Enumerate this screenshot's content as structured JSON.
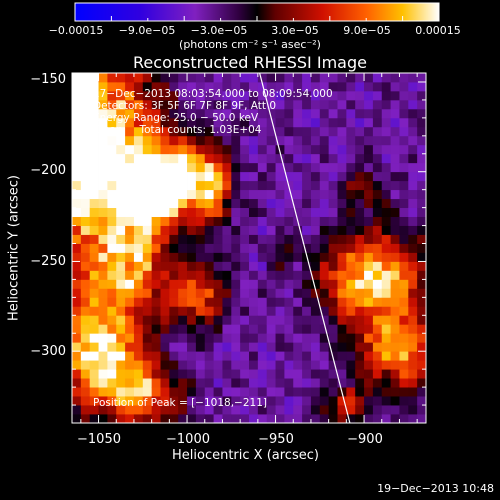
{
  "chart_data": {
    "type": "heatmap",
    "title": "Reconstructed RHESSI Image",
    "xlabel": "Heliocentric X (arcsec)",
    "ylabel": "Heliocentric Y (arcsec)",
    "xlim": [
      -1065,
      -865
    ],
    "ylim": [
      -340,
      -145
    ],
    "x_ticks": [
      -1050,
      -1000,
      -950,
      -900
    ],
    "x_tick_labels": [
      "−1050",
      "−1000",
      "−950",
      "−900"
    ],
    "y_ticks": [
      -150,
      -200,
      -250,
      -300
    ],
    "y_tick_labels": [
      "−150",
      "−200",
      "−250",
      "−300"
    ],
    "colorbar": {
      "range": [
        -0.00015,
        0.00015
      ],
      "tick_values": [
        -0.00015,
        -9e-05,
        -3e-05,
        3e-05,
        9e-05,
        0.00015
      ],
      "tick_labels": [
        "−0.00015",
        "−9.0e−05",
        "−3.0e−05",
        "3.0e−05",
        "9.0e−05",
        "0.00015"
      ],
      "unit": "(photons cm⁻² s⁻¹ asec⁻²)"
    },
    "annotations": {
      "time": "17−Dec−2013 08:03:54.000 to 08:09:54.000",
      "detectors": "Detectors: 3F 5F 6F 7F 8F 9F, Att 0",
      "energy": "Energy Range: 25.0 − 50.0 keV",
      "clean": "Clean     Total counts: 1.03E+04",
      "peak": "Position of Peak = [−1018,−211]"
    },
    "limb_line": {
      "x": [
        -959,
        -908
      ],
      "y": [
        -145,
        -340
      ]
    },
    "sources": [
      {
        "x": -1060,
        "y": -160,
        "sx": 8,
        "sy": 60,
        "amp": 1.0
      },
      {
        "x": -1040,
        "y": -180,
        "sx": 20,
        "sy": 30,
        "amp": 0.9
      },
      {
        "x": -1018,
        "y": -211,
        "sx": 20,
        "sy": 15,
        "amp": 1.0
      },
      {
        "x": -1000,
        "y": -200,
        "sx": 15,
        "sy": 12,
        "amp": 0.6
      },
      {
        "x": -1035,
        "y": -250,
        "sx": 15,
        "sy": 20,
        "amp": 0.9
      },
      {
        "x": -995,
        "y": -268,
        "sx": 12,
        "sy": 12,
        "amp": 0.7
      },
      {
        "x": -1050,
        "y": -300,
        "sx": 18,
        "sy": 20,
        "amp": 1.0
      },
      {
        "x": -1025,
        "y": -325,
        "sx": 15,
        "sy": 12,
        "amp": 0.7
      },
      {
        "x": -985,
        "y": -210,
        "sx": 6,
        "sy": 15,
        "amp": 0.45
      },
      {
        "x": -895,
        "y": -260,
        "sx": 20,
        "sy": 18,
        "amp": 1.0
      },
      {
        "x": -880,
        "y": -300,
        "sx": 15,
        "sy": 15,
        "amp": 0.8
      },
      {
        "x": -910,
        "y": -330,
        "sx": 10,
        "sy": 8,
        "amp": 0.5
      },
      {
        "x": -900,
        "y": -210,
        "sx": 8,
        "sy": 8,
        "amp": 0.35
      },
      {
        "x": -945,
        "y": -245,
        "sx": 5,
        "sy": 5,
        "amp": 0.3
      }
    ]
  },
  "footer": {
    "timestamp": "19−Dec−2013 10:48"
  }
}
